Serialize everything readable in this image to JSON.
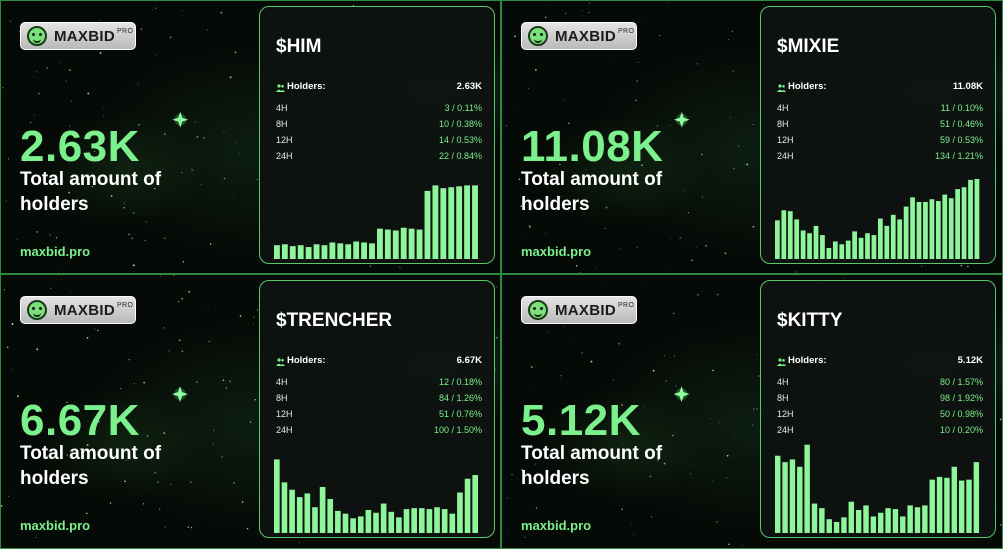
{
  "panels": [
    {
      "logo": {
        "brand": "MAXBID",
        "pro": "PRO",
        "icon": "smiley-face-icon"
      },
      "big_value": "2.63K",
      "caption": "Total amount of holders",
      "site": "maxbid.pro",
      "card": {
        "ticker": "$HIM",
        "holders_label": "Holders:",
        "holders_value": "2.63K",
        "rows": [
          {
            "label": "4H",
            "value": "3 / 0.11%"
          },
          {
            "label": "8H",
            "value": "10 / 0.38%"
          },
          {
            "label": "12H",
            "value": "14 / 0.53%"
          },
          {
            "label": "24H",
            "value": "22 / 0.84%"
          }
        ]
      }
    },
    {
      "logo": {
        "brand": "MAXBID",
        "pro": "PRO",
        "icon": "smiley-face-icon"
      },
      "big_value": "11.08K",
      "caption": "Total amount of holders",
      "site": "maxbid.pro",
      "card": {
        "ticker": "$MIXIE",
        "holders_label": "Holders:",
        "holders_value": "11.08K",
        "rows": [
          {
            "label": "4H",
            "value": "11 / 0.10%"
          },
          {
            "label": "8H",
            "value": "51 / 0.46%"
          },
          {
            "label": "12H",
            "value": "59 / 0.53%"
          },
          {
            "label": "24H",
            "value": "134 / 1.21%"
          }
        ]
      }
    },
    {
      "logo": {
        "brand": "MAXBID",
        "pro": "PRO",
        "icon": "smiley-face-icon"
      },
      "big_value": "6.67K",
      "caption": "Total amount of holders",
      "site": "maxbid.pro",
      "card": {
        "ticker": "$TRENCHER",
        "holders_label": "Holders:",
        "holders_value": "6.67K",
        "rows": [
          {
            "label": "4H",
            "value": "12 / 0.18%"
          },
          {
            "label": "8H",
            "value": "84 / 1.26%"
          },
          {
            "label": "12H",
            "value": "51 / 0.76%"
          },
          {
            "label": "24H",
            "value": "100 / 1.50%"
          }
        ]
      }
    },
    {
      "logo": {
        "brand": "MAXBID",
        "pro": "PRO",
        "icon": "smiley-face-icon"
      },
      "big_value": "5.12K",
      "caption": "Total amount of holders",
      "site": "maxbid.pro",
      "card": {
        "ticker": "$KITTY",
        "holders_label": "Holders:",
        "holders_value": "5.12K",
        "rows": [
          {
            "label": "4H",
            "value": "80 / 1.57%"
          },
          {
            "label": "8H",
            "value": "98 / 1.92%"
          },
          {
            "label": "12H",
            "value": "50 / 0.98%"
          },
          {
            "label": "24H",
            "value": "10 / 0.20%"
          }
        ]
      }
    }
  ],
  "colors": {
    "accent": "#7cf08c",
    "bar": "#8ef59a",
    "border": "#57c86a"
  },
  "chart_data": [
    {
      "type": "bar",
      "series": [
        {
          "values": [
            15,
            16,
            14,
            15,
            13,
            16,
            15,
            18,
            17,
            16,
            19,
            18,
            17,
            33,
            32,
            31,
            34,
            33,
            32,
            74,
            80,
            77,
            78,
            79,
            80,
            80
          ]
        }
      ]
    },
    {
      "type": "bar",
      "series": [
        {
          "values": [
            42,
            53,
            52,
            43,
            31,
            28,
            36,
            26,
            12,
            19,
            16,
            20,
            30,
            23,
            28,
            26,
            44,
            36,
            48,
            43,
            57,
            67,
            62,
            62,
            65,
            63,
            70,
            66,
            76,
            78,
            86,
            87
          ]
        }
      ]
    },
    {
      "type": "bar",
      "series": [
        {
          "values": [
            80,
            55,
            47,
            39,
            43,
            28,
            50,
            37,
            24,
            21,
            16,
            18,
            25,
            22,
            32,
            23,
            17,
            26,
            27,
            27,
            26,
            28,
            26,
            21,
            44,
            59,
            63
          ]
        }
      ]
    },
    {
      "type": "bar",
      "series": [
        {
          "values": [
            84,
            77,
            80,
            72,
            96,
            32,
            27,
            15,
            12,
            17,
            34,
            25,
            30,
            18,
            22,
            27,
            26,
            18,
            30,
            28,
            30,
            58,
            61,
            60,
            72,
            57,
            58,
            77
          ]
        }
      ]
    }
  ]
}
